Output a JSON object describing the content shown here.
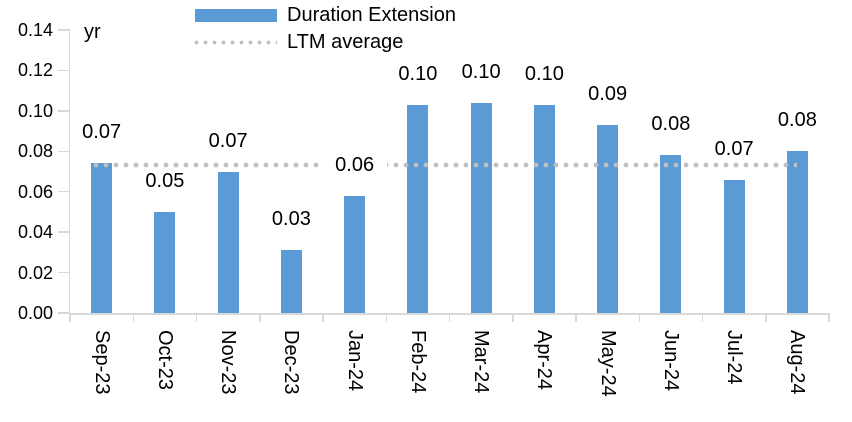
{
  "chart_data": {
    "type": "bar",
    "unit_label": "yr",
    "categories": [
      "Sep-23",
      "Oct-23",
      "Nov-23",
      "Dec-23",
      "Jan-24",
      "Feb-24",
      "Mar-24",
      "Apr-24",
      "May-24",
      "Jun-24",
      "Jul-24",
      "Aug-24"
    ],
    "series": [
      {
        "name": "Duration Extension",
        "type": "bar",
        "color": "#5b9bd5",
        "values": [
          0.074,
          0.05,
          0.07,
          0.031,
          0.058,
          0.103,
          0.104,
          0.103,
          0.093,
          0.078,
          0.066,
          0.08
        ],
        "data_labels": [
          "0.07",
          "0.05",
          "0.07",
          "0.03",
          "0.06",
          "0.10",
          "0.10",
          "0.10",
          "0.09",
          "0.08",
          "0.07",
          "0.08"
        ]
      },
      {
        "name": "LTM average",
        "type": "line",
        "line_style": "dotted",
        "color": "#bfbfbf",
        "value": 0.073
      }
    ],
    "ylim": [
      0,
      0.14
    ],
    "ytick_step": 0.02,
    "ytick_labels": [
      "0.00",
      "0.02",
      "0.04",
      "0.06",
      "0.08",
      "0.10",
      "0.12",
      "0.14"
    ],
    "legend_position": "top",
    "grid": false,
    "axis_color": "#d9d9d9",
    "text_color": "#000000"
  }
}
